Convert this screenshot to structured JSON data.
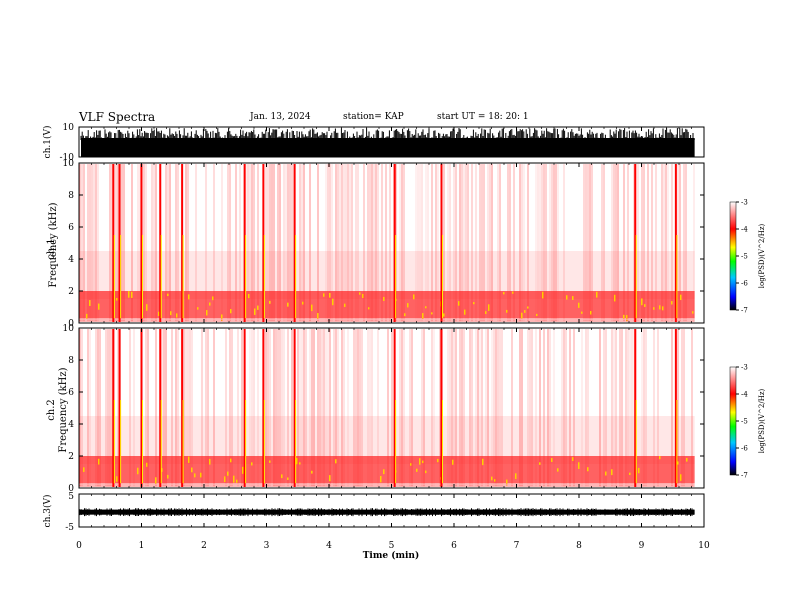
{
  "header": {
    "title": "VLF Spectra",
    "date": "Jan. 13, 2024",
    "station": "station= KAP",
    "start_ut": "start UT =  18: 20: 1"
  },
  "chart_data": [
    {
      "type": "line",
      "panel": "ch1-waveform",
      "ylabel": "ch.1(V)",
      "ylim": [
        -10,
        10
      ],
      "yticks": [
        "10",
        "-10"
      ],
      "xlim": [
        0,
        10
      ],
      "data_end_min": 9.85,
      "color": "#000000",
      "description_of_values": "saturated broadband signal spanning full range"
    },
    {
      "type": "heatmap",
      "panel": "ch1-spectrogram",
      "ylabel": "ch.1 Frequency (kHz)",
      "ylim": [
        0,
        10
      ],
      "yticks": [
        "0",
        "2",
        "4",
        "6",
        "8",
        "10"
      ],
      "xlim": [
        0,
        10
      ],
      "data_end_min": 9.85,
      "colorbar": {
        "label": "log(PSD)(V^2/Hz)",
        "range": [
          -7,
          -3
        ],
        "ticks": [
          "-3",
          "-4",
          "-5",
          "-6",
          "-7"
        ],
        "colors": [
          "#000000",
          "#0000ff",
          "#00c8ff",
          "#00ff00",
          "#ffff00",
          "#ff0000",
          "#ffffff"
        ]
      },
      "strong_band_khz": [
        0.3,
        2.0
      ],
      "bright_events_min": [
        0.55,
        0.65,
        1.0,
        1.3,
        1.65,
        2.65,
        2.95,
        3.45,
        5.05,
        5.8,
        8.9,
        9.55
      ]
    },
    {
      "type": "heatmap",
      "panel": "ch2-spectrogram",
      "ylabel": "ch.2 Frequency (kHz)",
      "ylim": [
        0,
        10
      ],
      "yticks": [
        "0",
        "2",
        "4",
        "6",
        "8",
        "10"
      ],
      "xlim": [
        0,
        10
      ],
      "data_end_min": 9.85,
      "colorbar": {
        "label": "log(PSD)(V^2/Hz)",
        "range": [
          -7,
          -3
        ],
        "ticks": [
          "-3",
          "-4",
          "-5",
          "-6",
          "-7"
        ],
        "colors": [
          "#000000",
          "#0000ff",
          "#00c8ff",
          "#00ff00",
          "#ffff00",
          "#ff0000",
          "#ffffff"
        ]
      },
      "strong_band_khz": [
        0.3,
        2.0
      ],
      "bright_events_min": [
        0.55,
        0.65,
        1.0,
        1.3,
        1.65,
        2.65,
        2.95,
        3.45,
        5.05,
        5.8,
        8.9,
        9.55
      ]
    },
    {
      "type": "line",
      "panel": "ch3-waveform",
      "ylabel": "ch.3(V)",
      "ylim": [
        -5,
        5
      ],
      "yticks": [
        "5",
        "-5"
      ],
      "xlim": [
        0,
        10
      ],
      "baseline_v": -0.5,
      "data_end_min": 9.85,
      "color": "#000000"
    }
  ],
  "xaxis": {
    "label": "Time (min)",
    "ticks": [
      "0",
      "1",
      "2",
      "3",
      "4",
      "5",
      "6",
      "7",
      "8",
      "9",
      "10"
    ]
  }
}
